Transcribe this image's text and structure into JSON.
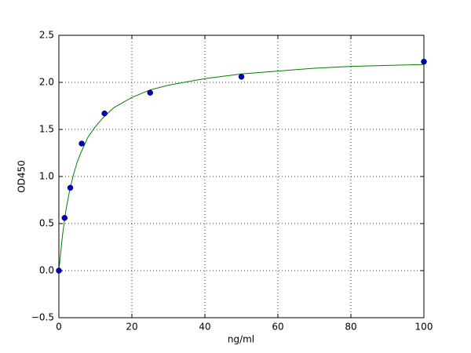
{
  "chart_data": {
    "type": "scatter",
    "xlabel": "ng/ml",
    "ylabel": "OD450",
    "xlim": [
      0,
      100
    ],
    "ylim": [
      -0.5,
      2.5
    ],
    "xticks": [
      0,
      20,
      40,
      60,
      80,
      100
    ],
    "yticks": [
      {
        "value": -0.5,
        "label": "−0.5"
      },
      {
        "value": 0,
        "label": "0.0"
      },
      0.5,
      {
        "value": 1,
        "label": "1.0"
      },
      1.5,
      {
        "value": 2,
        "label": "2.0"
      },
      2.5
    ],
    "grid": true,
    "series": [
      {
        "type": "line",
        "color": "#008000",
        "x": [
          0,
          1,
          2,
          3,
          4,
          5,
          6,
          8,
          10,
          12,
          15,
          20,
          25,
          30,
          40,
          50,
          60,
          70,
          80,
          90,
          100
        ],
        "values": [
          0,
          0.38,
          0.66,
          0.86,
          1.02,
          1.15,
          1.25,
          1.42,
          1.53,
          1.62,
          1.73,
          1.84,
          1.92,
          1.97,
          2.04,
          2.09,
          2.12,
          2.15,
          2.17,
          2.18,
          2.19
        ]
      },
      {
        "type": "scatter",
        "color": "#0000c0",
        "x": [
          0,
          1.5625,
          3.125,
          6.25,
          12.5,
          25,
          50,
          100
        ],
        "values": [
          0.0,
          0.56,
          0.88,
          1.35,
          1.67,
          1.89,
          2.06,
          2.22
        ]
      }
    ]
  }
}
